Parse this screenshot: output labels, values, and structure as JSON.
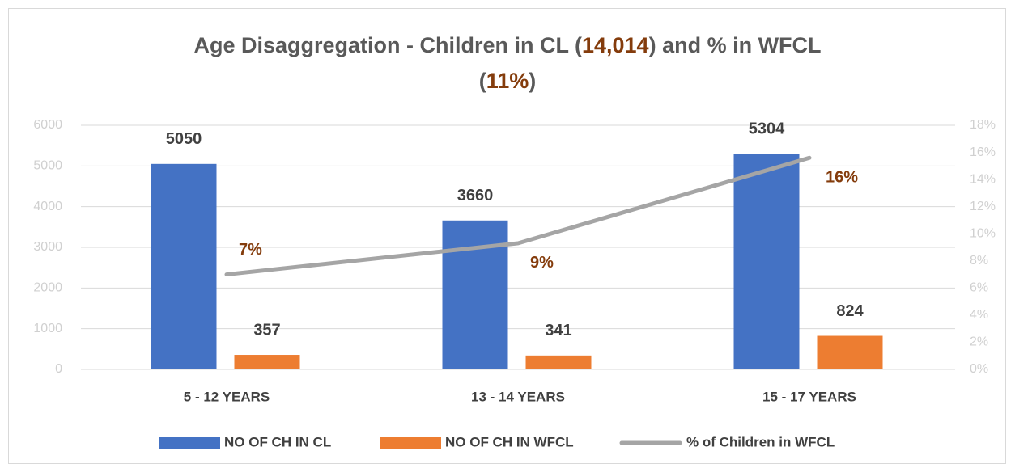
{
  "chart_data": {
    "type": "bar_line",
    "title": [
      [
        {
          "text": "Age Disaggregation - Children in CL ("
        },
        {
          "text": "14,014",
          "color": "#843c0c"
        },
        {
          "text": ") and % in WFCL"
        }
      ],
      [
        {
          "text": "("
        },
        {
          "text": "11%",
          "color": "#843c0c"
        },
        {
          "text": ")"
        }
      ]
    ],
    "categories": [
      "5 - 12 YEARS",
      "13 - 14 YEARS",
      "15 - 17 YEARS"
    ],
    "series": [
      {
        "name": "NO OF CH IN CL",
        "type": "bar",
        "color": "#4472c4",
        "values": [
          5050,
          3660,
          5304
        ]
      },
      {
        "name": "NO OF CH IN WFCL",
        "type": "bar",
        "color": "#ed7d31",
        "values": [
          357,
          341,
          824
        ]
      },
      {
        "name": "% of Children in WFCL",
        "type": "line",
        "axis": "y2",
        "color": "#a5a5a5",
        "values": [
          7.0,
          9.3,
          15.6
        ],
        "value_labels": [
          "7%",
          "9%",
          "16%"
        ],
        "label_color": "#843c0c"
      }
    ],
    "ylim": [
      0,
      6000
    ],
    "yticks": [
      0,
      1000,
      2000,
      3000,
      4000,
      5000,
      6000
    ],
    "y2lim": [
      0,
      18
    ],
    "y2ticks": [
      {
        "value": 0,
        "label": "0%"
      },
      {
        "value": 2,
        "label": "2%"
      },
      {
        "value": 4,
        "label": "4%"
      },
      {
        "value": 6,
        "label": "6%"
      },
      {
        "value": 8,
        "label": "8%"
      },
      {
        "value": 10,
        "label": "10%"
      },
      {
        "value": 12,
        "label": "12%"
      },
      {
        "value": 14,
        "label": "14%"
      },
      {
        "value": 16,
        "label": "16%"
      },
      {
        "value": 18,
        "label": "18%"
      }
    ],
    "grid": true,
    "legend": "bottom"
  }
}
